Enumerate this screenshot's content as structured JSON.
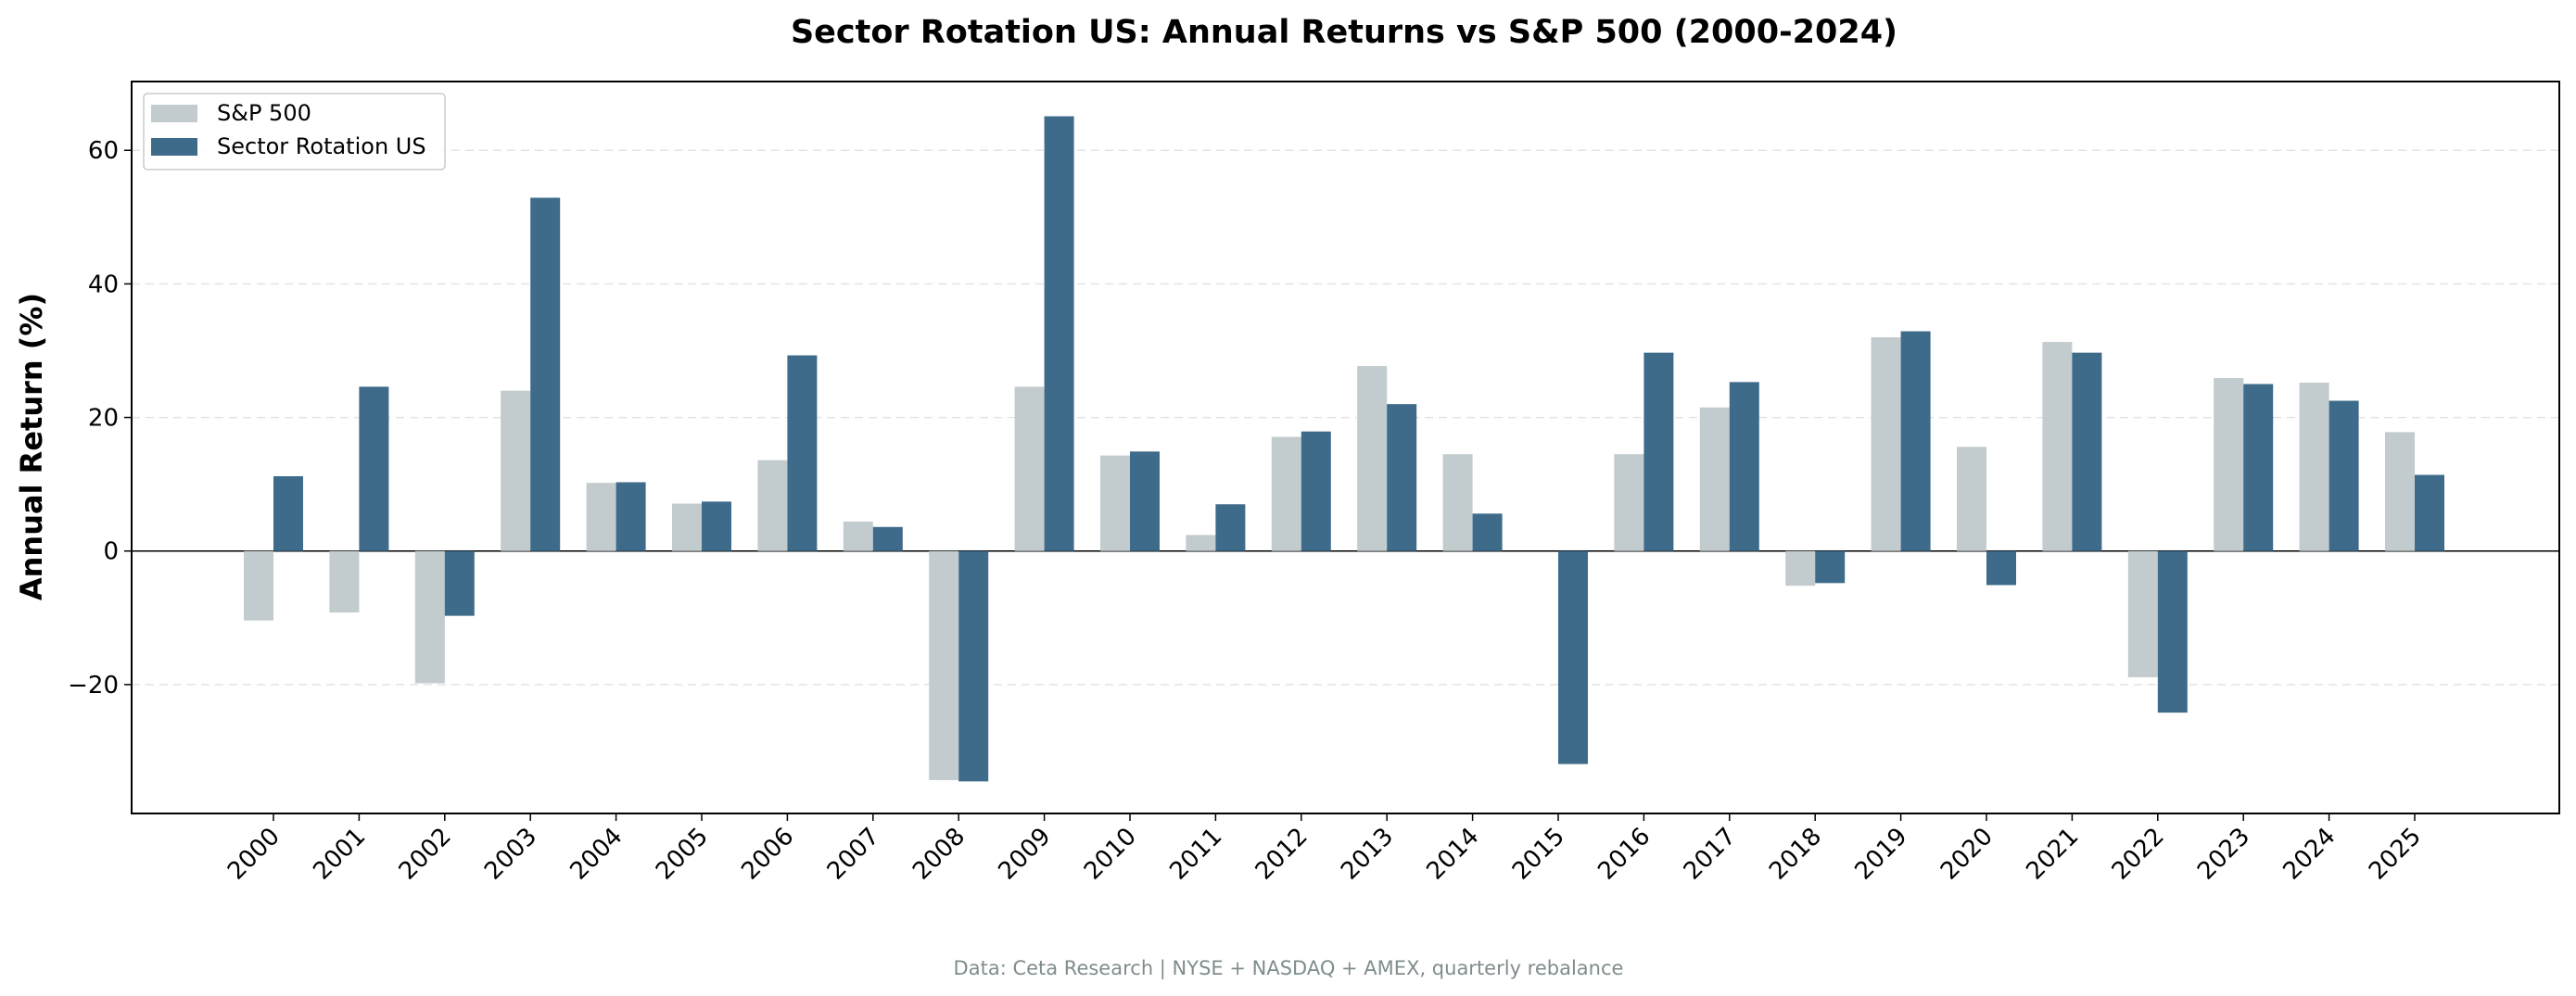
{
  "chart_data": {
    "type": "bar",
    "title": "Sector Rotation US: Annual Returns vs S&P 500 (2000-2024)",
    "xlabel": "",
    "ylabel": "Annual Return (%)",
    "source_note": "Data: Ceta Research | NYSE + NASDAQ + AMEX, quarterly rebalance",
    "categories": [
      "2000",
      "2001",
      "2002",
      "2003",
      "2004",
      "2005",
      "2006",
      "2007",
      "2008",
      "2009",
      "2010",
      "2011",
      "2012",
      "2013",
      "2014",
      "2015",
      "2016",
      "2017",
      "2018",
      "2019",
      "2020",
      "2021",
      "2022",
      "2023",
      "2024",
      "2025"
    ],
    "series": [
      {
        "name": "S&P 500",
        "color": "#c2cbcd",
        "values": [
          -10.4,
          -9.2,
          -19.8,
          24.0,
          10.2,
          7.1,
          13.6,
          4.4,
          -34.3,
          24.6,
          14.3,
          2.4,
          17.1,
          27.7,
          14.5,
          null,
          14.5,
          21.5,
          -5.2,
          32.0,
          15.6,
          31.3,
          -18.9,
          25.9,
          25.2,
          17.8
        ]
      },
      {
        "name": "Sector Rotation US",
        "color": "#3e6b8a",
        "values": [
          11.2,
          24.6,
          -9.7,
          52.9,
          10.3,
          7.4,
          29.3,
          3.6,
          -34.5,
          65.1,
          14.9,
          7.0,
          17.9,
          22.0,
          5.6,
          -31.9,
          29.7,
          25.3,
          -4.8,
          32.9,
          -5.1,
          29.7,
          -24.2,
          25.0,
          22.5,
          11.4
        ]
      }
    ],
    "ylim": [
      -39.3,
      70.3
    ],
    "yticks": [
      -20,
      0,
      20,
      40,
      60
    ],
    "ytick_labels": [
      "−20",
      "0",
      "20",
      "40",
      "60"
    ],
    "grid": "horizontal dashed",
    "legend_position": "top-left"
  }
}
